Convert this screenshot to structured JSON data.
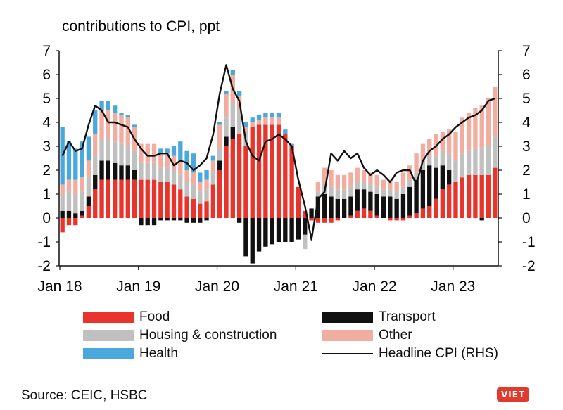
{
  "chart_data": {
    "type": "bar",
    "stacked": true,
    "title": "contributions to CPI, ppt",
    "source": "Source: CEIC, HSBC",
    "ylim_left": [
      -2,
      7
    ],
    "ylim_right": [
      -2,
      7
    ],
    "yticks": [
      "-2",
      "-1",
      "0",
      "1",
      "2",
      "3",
      "4",
      "5",
      "6",
      "7"
    ],
    "xticks": [
      {
        "label": "Jan 18",
        "index": 0
      },
      {
        "label": "Jan 19",
        "index": 12
      },
      {
        "label": "Jan 20",
        "index": 24
      },
      {
        "label": "Jan 21",
        "index": 36
      },
      {
        "label": "Jan 22",
        "index": 48
      },
      {
        "label": "Jan 23",
        "index": 60
      }
    ],
    "colors": {
      "food": "#e8342a",
      "transport": "#111111",
      "housing": "#c0c0c0",
      "other": "#f2ada1",
      "health": "#4aa8dd",
      "line": "#111111"
    },
    "series": [
      {
        "key": "food",
        "name": "Food",
        "values": [
          -0.6,
          -0.3,
          -0.3,
          0.1,
          0.5,
          1.2,
          1.6,
          1.6,
          1.6,
          1.6,
          1.6,
          1.6,
          1.6,
          1.6,
          1.6,
          1.5,
          1.5,
          1.4,
          1.2,
          0.9,
          0.8,
          0.6,
          0.7,
          1.4,
          2.0,
          3.0,
          3.3,
          3.5,
          3.0,
          3.8,
          3.9,
          3.9,
          3.9,
          3.9,
          3.5,
          3.0,
          1.3,
          0.3,
          -0.1,
          -0.2,
          -0.2,
          -0.2,
          -0.1,
          0.0,
          0.1,
          0.3,
          0.4,
          0.3,
          0.1,
          0.0,
          -0.1,
          -0.1,
          -0.1,
          0.1,
          0.2,
          0.4,
          0.5,
          0.8,
          1.2,
          1.4,
          1.5,
          1.7,
          1.8,
          1.8,
          1.8,
          1.8,
          2.1
        ]
      },
      {
        "key": "transport",
        "name": "Transport",
        "values": [
          0.3,
          0.3,
          0.2,
          0.2,
          0.4,
          0.6,
          0.8,
          0.8,
          0.7,
          0.6,
          0.6,
          0.4,
          -0.3,
          -0.3,
          -0.3,
          -0.1,
          -0.1,
          -0.1,
          -0.1,
          -0.2,
          -0.2,
          -0.2,
          -0.1,
          0.0,
          0.4,
          0.4,
          0.5,
          -0.2,
          -1.6,
          -1.9,
          -1.4,
          -1.2,
          -1.1,
          -1.0,
          -1.0,
          -1.0,
          -0.9,
          -0.7,
          0.4,
          0.9,
          1.0,
          0.9,
          0.8,
          0.8,
          0.8,
          0.9,
          0.8,
          0.8,
          0.9,
          0.9,
          0.9,
          0.8,
          1.0,
          1.2,
          1.4,
          1.6,
          1.7,
          1.3,
          1.0,
          0.6,
          0.0,
          0.0,
          0.0,
          0.0,
          -0.1,
          0.0,
          0.0
        ]
      },
      {
        "key": "housing",
        "name": "Housing & construction",
        "values": [
          0.7,
          0.8,
          0.8,
          0.8,
          0.8,
          0.8,
          0.9,
          0.9,
          0.9,
          0.9,
          0.8,
          0.8,
          0.7,
          0.7,
          0.7,
          0.6,
          0.6,
          0.6,
          0.6,
          0.6,
          0.6,
          0.5,
          0.5,
          0.5,
          0.5,
          0.8,
          1.0,
          1.0,
          0.6,
          0.0,
          0.0,
          0.0,
          0.0,
          0.0,
          0.0,
          0.0,
          0.0,
          -0.6,
          0.0,
          0.2,
          0.4,
          0.4,
          0.4,
          0.4,
          0.4,
          0.3,
          0.3,
          0.3,
          0.3,
          0.3,
          0.3,
          0.3,
          0.3,
          0.3,
          0.3,
          0.3,
          0.4,
          0.5,
          0.6,
          0.7,
          0.9,
          1.0,
          1.0,
          1.1,
          1.1,
          1.2,
          1.3
        ]
      },
      {
        "key": "other",
        "name": "Other",
        "values": [
          0.4,
          0.5,
          0.6,
          0.6,
          0.7,
          0.9,
          1.2,
          1.2,
          1.2,
          1.2,
          1.2,
          1.0,
          0.8,
          0.8,
          0.8,
          0.6,
          0.6,
          0.6,
          0.6,
          0.5,
          0.5,
          0.4,
          0.4,
          0.5,
          1.0,
          1.0,
          1.2,
          0.6,
          0.2,
          0.2,
          0.2,
          0.3,
          0.3,
          0.3,
          0.0,
          0.0,
          0.0,
          0.0,
          0.0,
          0.4,
          0.7,
          0.7,
          0.6,
          0.6,
          0.6,
          0.6,
          0.5,
          0.5,
          0.5,
          0.4,
          0.4,
          0.4,
          0.6,
          0.6,
          0.8,
          0.8,
          0.7,
          0.9,
          0.8,
          1.0,
          1.2,
          1.5,
          1.6,
          1.7,
          1.8,
          2.0,
          2.1
        ]
      },
      {
        "key": "health",
        "name": "Health",
        "values": [
          2.4,
          1.6,
          1.3,
          1.5,
          1.0,
          1.0,
          0.4,
          0.4,
          0.3,
          0.1,
          0.1,
          0.1,
          0.0,
          0.0,
          0.0,
          0.2,
          0.2,
          0.4,
          0.8,
          0.8,
          0.8,
          0.4,
          0.4,
          0.2,
          0.1,
          0.1,
          0.2,
          0.2,
          0.2,
          0.2,
          0.2,
          0.2,
          0.2,
          0.2,
          0.2,
          0.1,
          0.0,
          0.0,
          0.0,
          0.0,
          0.0,
          0.0,
          0.0,
          0.0,
          0.0,
          0.0,
          0.0,
          0.0,
          0.0,
          0.0,
          0.0,
          0.0,
          0.0,
          0.0,
          0.0,
          0.0,
          0.0,
          0.0,
          0.0,
          0.0,
          0.0,
          0.0,
          0.0,
          0.0,
          0.0,
          0.0,
          0.0
        ]
      },
      {
        "key": "line",
        "name": "Headline CPI (RHS)",
        "type": "line",
        "values": [
          2.6,
          3.2,
          2.8,
          2.9,
          3.9,
          4.7,
          4.5,
          4.0,
          4.0,
          3.9,
          3.8,
          3.3,
          2.9,
          2.6,
          2.6,
          2.7,
          2.7,
          2.2,
          2.4,
          2.3,
          2.0,
          2.2,
          2.5,
          3.5,
          5.2,
          6.4,
          5.4,
          4.9,
          3.2,
          2.6,
          2.4,
          3.2,
          3.3,
          3.5,
          3.3,
          3.0,
          1.6,
          0.5,
          -0.9,
          0.8,
          1.1,
          2.7,
          2.4,
          2.8,
          2.5,
          2.7,
          2.1,
          1.8,
          2.0,
          1.8,
          1.5,
          1.9,
          2.0,
          2.0,
          1.4,
          2.4,
          2.8,
          3.0,
          3.3,
          3.5,
          3.8,
          4.0,
          4.2,
          4.3,
          4.5,
          4.9,
          5.0
        ]
      }
    ]
  },
  "legend": [
    {
      "key": "food",
      "label": "Food",
      "col": 0,
      "row": 0
    },
    {
      "key": "housing",
      "label": "Housing & construction",
      "col": 0,
      "row": 1
    },
    {
      "key": "health",
      "label": "Health",
      "col": 0,
      "row": 2
    },
    {
      "key": "transport",
      "label": "Transport",
      "col": 1,
      "row": 0
    },
    {
      "key": "other",
      "label": "Other",
      "col": 1,
      "row": 1
    },
    {
      "key": "line",
      "label": "Headline CPI (RHS)",
      "col": 1,
      "row": 2
    }
  ],
  "logo_text": "VIET"
}
